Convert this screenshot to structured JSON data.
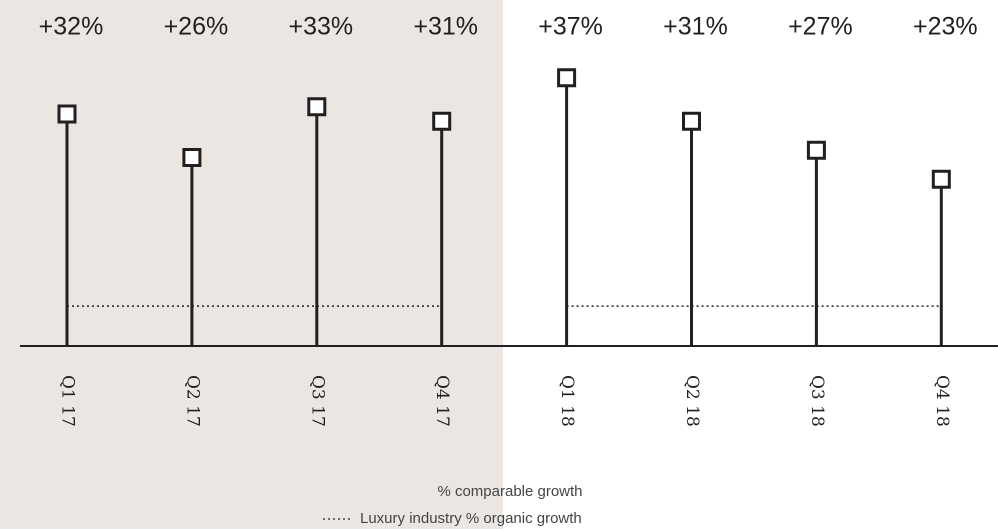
{
  "chart_data": {
    "type": "lollipop",
    "categories": [
      "Q1 17",
      "Q2 17",
      "Q3 17",
      "Q4 17",
      "Q1 18",
      "Q2 18",
      "Q3 18",
      "Q4 18"
    ],
    "series": [
      {
        "name": "% comparable growth",
        "color": "#231f20",
        "values": [
          32,
          26,
          33,
          31,
          37,
          31,
          27,
          23
        ],
        "value_labels": [
          "+32%",
          "+26%",
          "+33%",
          "+31%",
          "+37%",
          "+31%",
          "+27%",
          "+23%"
        ]
      },
      {
        "name": "Luxury industry % organic growth",
        "color": "#231f20",
        "values": [
          5.5,
          5.5,
          5.5,
          5.5,
          5.5,
          5.5,
          5.5,
          5.5
        ]
      }
    ],
    "ylim": [
      0,
      40
    ]
  }
}
